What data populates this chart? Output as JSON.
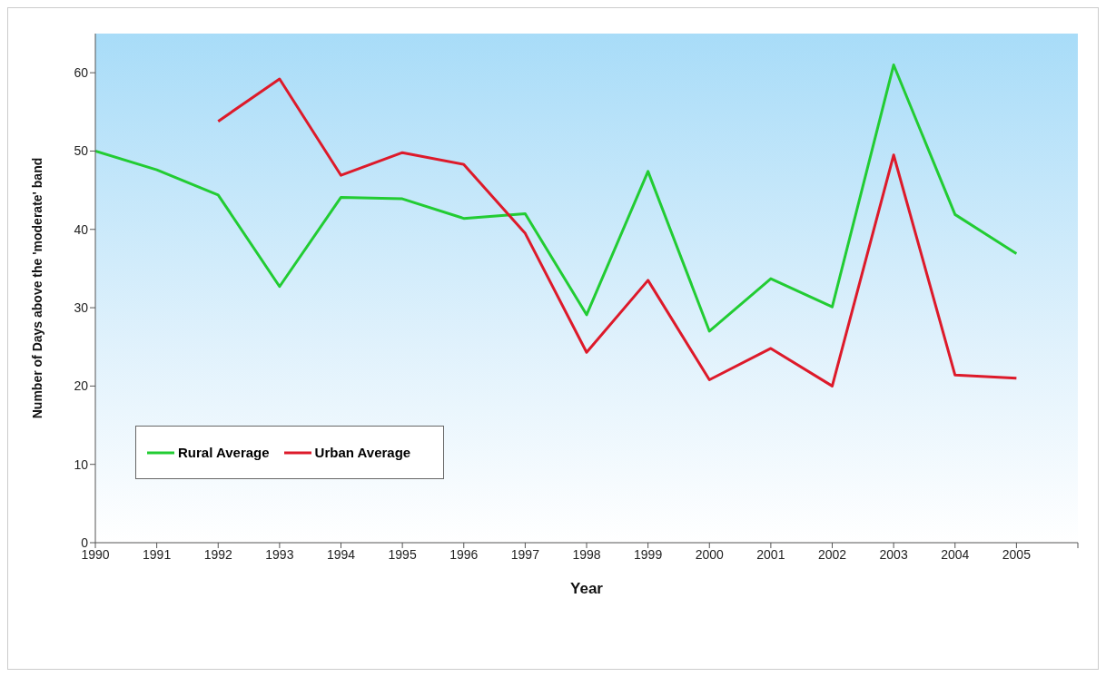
{
  "chart_data": {
    "type": "line",
    "xlabel": "Year",
    "ylabel": "Number of Days above the 'moderate' band",
    "x": [
      1990,
      1991,
      1992,
      1993,
      1994,
      1995,
      1996,
      1997,
      1998,
      1999,
      2000,
      2001,
      2002,
      2003,
      2004,
      2005
    ],
    "series": [
      {
        "name": "Rural Average",
        "color": "#22cc33",
        "values": [
          50,
          47.6,
          44.4,
          32.7,
          44.1,
          43.9,
          41.4,
          42.0,
          29.1,
          47.4,
          27.0,
          33.7,
          30.1,
          61.0,
          41.9,
          36.9
        ]
      },
      {
        "name": "Urban Average",
        "color": "#dd1a2a",
        "values": [
          null,
          null,
          53.8,
          59.2,
          46.9,
          49.8,
          48.3,
          39.5,
          24.3,
          33.5,
          20.8,
          24.8,
          20.0,
          49.5,
          21.4,
          21.0
        ]
      }
    ],
    "xlim": [
      1990,
      2006
    ],
    "xticks": [
      1990,
      1991,
      1992,
      1993,
      1994,
      1995,
      1996,
      1997,
      1998,
      1999,
      2000,
      2001,
      2002,
      2003,
      2004,
      2005,
      {
        "value": 2006,
        "label": null
      }
    ],
    "ylim": [
      0,
      65
    ],
    "yticks": [
      0,
      10,
      20,
      30,
      40,
      50,
      60
    ],
    "legend": "bottom left",
    "marker": "none",
    "line_style": "solid"
  }
}
